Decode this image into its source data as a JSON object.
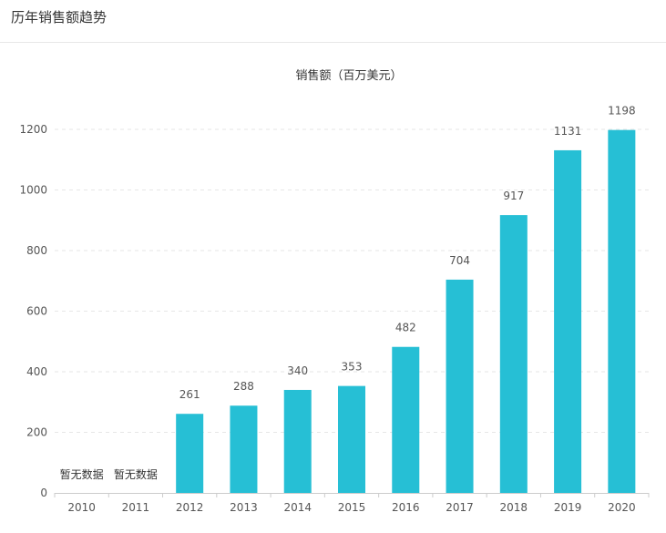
{
  "page": {
    "title": "历年销售额趋势"
  },
  "chart_data": {
    "type": "bar",
    "title": "销售额（百万美元）",
    "xlabel": "",
    "ylabel": "",
    "categories": [
      "2010",
      "2011",
      "2012",
      "2013",
      "2014",
      "2015",
      "2016",
      "2017",
      "2018",
      "2019",
      "2020"
    ],
    "values": [
      null,
      null,
      261,
      288,
      340,
      353,
      482,
      704,
      917,
      1131,
      1198
    ],
    "no_data_label": "暂无数据",
    "ylim": [
      0,
      1200
    ],
    "yticks": [
      0,
      200,
      400,
      600,
      800,
      1000,
      1200
    ],
    "grid": true,
    "legend": "none",
    "bar_color": "#26bfd5",
    "grid_color": "#e6e6e6",
    "axis_color": "#cccccc",
    "label_color": "#555555"
  }
}
